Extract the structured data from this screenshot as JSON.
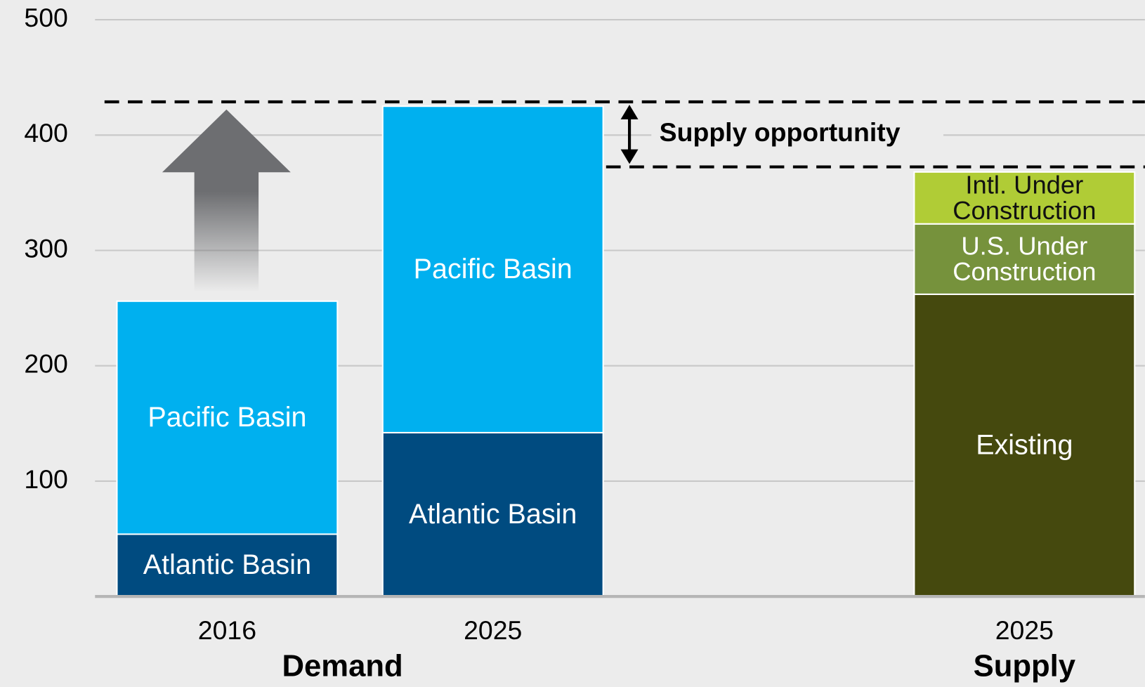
{
  "chart_data": {
    "type": "stacked_bar",
    "categories": [
      "2016",
      "2025",
      null,
      "2025"
    ],
    "series": [
      {
        "name": "Atlantic Basin",
        "color": "#004b80",
        "values": [
          54,
          142,
          null,
          null
        ]
      },
      {
        "name": "Pacific Basin",
        "color": "#00b0ef",
        "values": [
          202,
          283,
          null,
          null
        ]
      },
      {
        "name": "Existing",
        "color": "#45490e",
        "values": [
          null,
          null,
          null,
          262
        ]
      },
      {
        "name": "U.S. Under Construction",
        "color": "#76923c",
        "values": [
          null,
          null,
          null,
          61
        ]
      },
      {
        "name": "Intl. Under Construction",
        "color": "#b0cc36",
        "values": [
          null,
          null,
          null,
          45
        ]
      }
    ],
    "groups": [
      "Demand",
      "Supply"
    ],
    "annotation": "Supply opportunity",
    "ylim": [
      0,
      500
    ],
    "yticks": [
      100,
      200,
      300,
      400,
      500
    ],
    "grid": true
  }
}
